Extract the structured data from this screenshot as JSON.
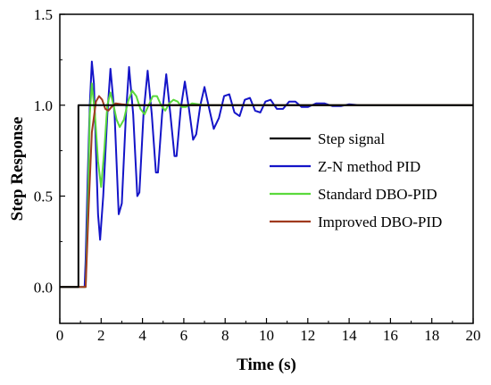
{
  "chart_data": {
    "type": "line",
    "title": "",
    "xlabel": "Time (s)",
    "ylabel": "Step Response",
    "xlim": [
      0,
      20
    ],
    "ylim": [
      -0.2,
      1.5
    ],
    "xticks": [
      0,
      2,
      4,
      6,
      8,
      10,
      12,
      14,
      16,
      18,
      20
    ],
    "xtick_labels": [
      "0",
      "2",
      "4",
      "6",
      "8",
      "10",
      "12",
      "14",
      "16",
      "18",
      "20"
    ],
    "yticks": [
      0.0,
      0.5,
      1.0,
      1.5
    ],
    "ytick_labels": [
      "0.0",
      "0.5",
      "1.0",
      "1.5"
    ],
    "grid": false,
    "legend_position": "right",
    "series": [
      {
        "name": "Step signal",
        "color": "#000000",
        "points": [
          [
            0,
            0
          ],
          [
            0.9,
            0
          ],
          [
            0.9,
            1.0
          ],
          [
            20,
            1.0
          ]
        ]
      },
      {
        "name": "Z-N method PID",
        "color": "#1414c8",
        "points": [
          [
            0,
            0
          ],
          [
            1.2,
            0
          ],
          [
            1.25,
            0.15
          ],
          [
            1.35,
            0.6
          ],
          [
            1.45,
            1.0
          ],
          [
            1.55,
            1.24
          ],
          [
            1.65,
            1.12
          ],
          [
            1.75,
            0.75
          ],
          [
            1.85,
            0.4
          ],
          [
            1.95,
            0.26
          ],
          [
            2.1,
            0.5
          ],
          [
            2.3,
            0.95
          ],
          [
            2.45,
            1.2
          ],
          [
            2.65,
            0.95
          ],
          [
            2.85,
            0.4
          ],
          [
            3.0,
            0.46
          ],
          [
            3.2,
            0.95
          ],
          [
            3.35,
            1.21
          ],
          [
            3.55,
            0.95
          ],
          [
            3.75,
            0.5
          ],
          [
            3.85,
            0.52
          ],
          [
            4.05,
            0.95
          ],
          [
            4.25,
            1.19
          ],
          [
            4.45,
            0.95
          ],
          [
            4.65,
            0.63
          ],
          [
            4.75,
            0.63
          ],
          [
            4.95,
            0.95
          ],
          [
            5.15,
            1.17
          ],
          [
            5.35,
            0.95
          ],
          [
            5.55,
            0.72
          ],
          [
            5.65,
            0.72
          ],
          [
            5.85,
            0.98
          ],
          [
            6.05,
            1.13
          ],
          [
            6.25,
            0.98
          ],
          [
            6.45,
            0.81
          ],
          [
            6.6,
            0.84
          ],
          [
            6.8,
            1.0
          ],
          [
            7.0,
            1.1
          ],
          [
            7.25,
            0.97
          ],
          [
            7.45,
            0.87
          ],
          [
            7.7,
            0.93
          ],
          [
            7.95,
            1.05
          ],
          [
            8.2,
            1.06
          ],
          [
            8.45,
            0.96
          ],
          [
            8.7,
            0.94
          ],
          [
            8.95,
            1.03
          ],
          [
            9.2,
            1.04
          ],
          [
            9.45,
            0.97
          ],
          [
            9.7,
            0.96
          ],
          [
            9.95,
            1.02
          ],
          [
            10.2,
            1.03
          ],
          [
            10.5,
            0.98
          ],
          [
            10.8,
            0.98
          ],
          [
            11.1,
            1.02
          ],
          [
            11.4,
            1.02
          ],
          [
            11.7,
            0.99
          ],
          [
            12.0,
            0.99
          ],
          [
            12.4,
            1.01
          ],
          [
            12.8,
            1.01
          ],
          [
            13.2,
            0.995
          ],
          [
            13.6,
            0.995
          ],
          [
            14.0,
            1.005
          ],
          [
            14.5,
            1.0
          ],
          [
            20,
            1.0
          ]
        ]
      },
      {
        "name": "Standard DBO-PID",
        "color": "#5ad93c",
        "points": [
          [
            0,
            0
          ],
          [
            1.25,
            0
          ],
          [
            1.35,
            0.4
          ],
          [
            1.45,
            0.95
          ],
          [
            1.55,
            1.12
          ],
          [
            1.7,
            0.95
          ],
          [
            1.85,
            0.69
          ],
          [
            2.0,
            0.55
          ],
          [
            2.15,
            0.75
          ],
          [
            2.3,
            1.0
          ],
          [
            2.45,
            1.07
          ],
          [
            2.6,
            1.0
          ],
          [
            2.75,
            0.92
          ],
          [
            2.9,
            0.88
          ],
          [
            3.1,
            0.92
          ],
          [
            3.3,
            1.02
          ],
          [
            3.5,
            1.08
          ],
          [
            3.7,
            1.05
          ],
          [
            3.9,
            0.98
          ],
          [
            4.1,
            0.95
          ],
          [
            4.3,
            1.0
          ],
          [
            4.5,
            1.05
          ],
          [
            4.7,
            1.05
          ],
          [
            4.9,
            1.0
          ],
          [
            5.1,
            0.97
          ],
          [
            5.3,
            1.01
          ],
          [
            5.5,
            1.03
          ],
          [
            5.7,
            1.02
          ],
          [
            5.9,
            0.99
          ],
          [
            6.1,
            0.99
          ],
          [
            6.4,
            1.01
          ],
          [
            6.7,
            1.005
          ],
          [
            7.0,
            1.0
          ],
          [
            20,
            1.0
          ]
        ]
      },
      {
        "name": "Improved DBO-PID",
        "color": "#a03a1e",
        "points": [
          [
            0,
            0
          ],
          [
            1.25,
            0
          ],
          [
            1.4,
            0.45
          ],
          [
            1.55,
            0.85
          ],
          [
            1.75,
            1.02
          ],
          [
            1.9,
            1.05
          ],
          [
            2.05,
            1.03
          ],
          [
            2.2,
            0.98
          ],
          [
            2.35,
            0.97
          ],
          [
            2.5,
            0.99
          ],
          [
            2.7,
            1.01
          ],
          [
            3.0,
            1.005
          ],
          [
            3.4,
            1.0
          ],
          [
            20,
            1.0
          ]
        ]
      }
    ]
  }
}
